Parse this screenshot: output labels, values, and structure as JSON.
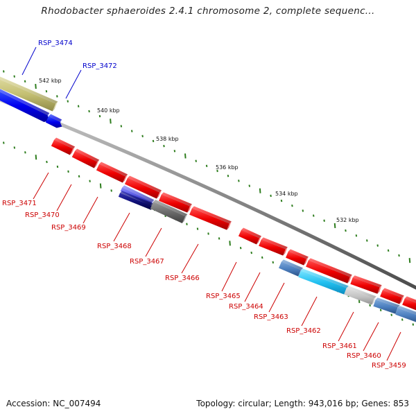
{
  "title": "Rhodobacter sphaeroides 2.4.1 chromosome 2, complete sequenc...",
  "footer": {
    "accession": "Accession: NC_007494",
    "summary": "Topology: circular; Length: 943,016 bp; Genes: 853"
  },
  "colors": {
    "forward_label": "#0000cc",
    "reverse_label": "#cc0000",
    "backbone": "#888888",
    "tick": "#2e7d1e"
  },
  "scale_labels": [
    "542 kbp",
    "540 kbp",
    "538 kbp",
    "536 kbp",
    "534 kbp",
    "532 kbp"
  ],
  "genes": [
    {
      "label": "RSP_3474",
      "strand": "+"
    },
    {
      "label": "RSP_3472",
      "strand": "+"
    },
    {
      "label": "RSP_3471",
      "strand": "-"
    },
    {
      "label": "RSP_3470",
      "strand": "-"
    },
    {
      "label": "RSP_3469",
      "strand": "-"
    },
    {
      "label": "RSP_3468",
      "strand": "-"
    },
    {
      "label": "RSP_3467",
      "strand": "-"
    },
    {
      "label": "RSP_3466",
      "strand": "-"
    },
    {
      "label": "RSP_3465",
      "strand": "-"
    },
    {
      "label": "RSP_3464",
      "strand": "-"
    },
    {
      "label": "RSP_3463",
      "strand": "-"
    },
    {
      "label": "RSP_3462",
      "strand": "-"
    },
    {
      "label": "RSP_3461",
      "strand": "-"
    },
    {
      "label": "RSP_3460",
      "strand": "-"
    },
    {
      "label": "RSP_3459",
      "strand": "-"
    }
  ]
}
